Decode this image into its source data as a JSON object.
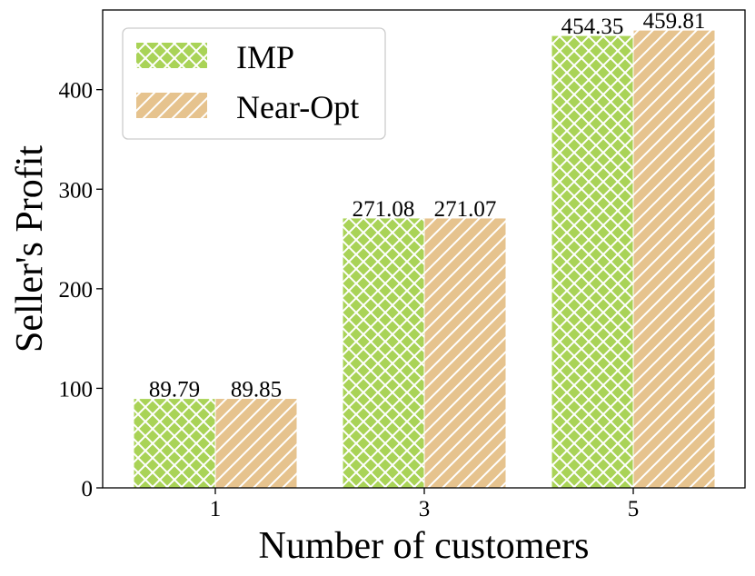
{
  "chart_data": {
    "type": "bar",
    "categories": [
      "1",
      "3",
      "5"
    ],
    "series": [
      {
        "name": "IMP",
        "values": [
          89.79,
          271.08,
          454.35
        ],
        "color": "#a9d357",
        "hatch": "crosshatch"
      },
      {
        "name": "Near-Opt",
        "values": [
          89.85,
          271.07,
          459.81
        ],
        "color": "#e6c38e",
        "hatch": "diagonal"
      }
    ],
    "data_labels": [
      [
        "89.79",
        "271.08",
        "454.35"
      ],
      [
        "89.85",
        "271.07",
        "459.81"
      ]
    ],
    "xlabel": "Number of customers",
    "ylabel": "Seller's Profit",
    "ylim": [
      0,
      480
    ],
    "yticks": [
      0,
      100,
      200,
      300,
      400
    ],
    "ytick_labels": [
      "0",
      "100",
      "200",
      "300",
      "400"
    ],
    "grid": false,
    "legend_position": "top-left"
  }
}
